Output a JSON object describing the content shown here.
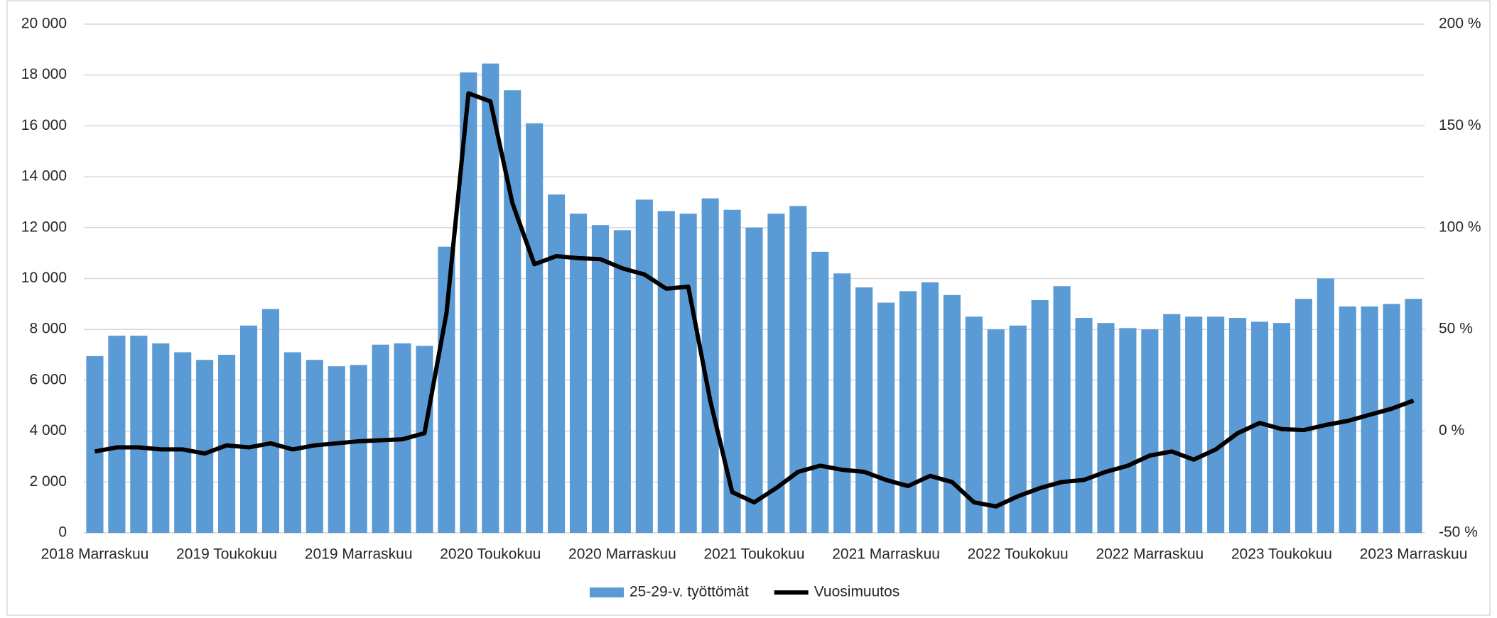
{
  "chart_data": {
    "type": "bar_line",
    "categories": [
      "2018 Marraskuu",
      null,
      null,
      null,
      null,
      null,
      "2019 Toukokuu",
      null,
      null,
      null,
      null,
      null,
      "2019 Marraskuu",
      null,
      null,
      null,
      null,
      null,
      "2020 Toukokuu",
      null,
      null,
      null,
      null,
      null,
      "2020 Marraskuu",
      null,
      null,
      null,
      null,
      null,
      "2021 Toukokuu",
      null,
      null,
      null,
      null,
      null,
      "2021 Marraskuu",
      null,
      null,
      null,
      null,
      null,
      "2022 Toukokuu",
      null,
      null,
      null,
      null,
      null,
      "2022 Marraskuu",
      null,
      null,
      null,
      null,
      null,
      "2023 Toukokuu",
      null,
      null,
      null,
      null,
      null,
      "2023 Marraskuu"
    ],
    "series": [
      {
        "name": "25-29-v. työttömät",
        "type": "bar",
        "color": "#5b9bd5",
        "values": [
          6950,
          7750,
          7750,
          7450,
          7100,
          6800,
          7000,
          8150,
          8800,
          7100,
          6800,
          6550,
          6600,
          7400,
          7450,
          7350,
          11250,
          18100,
          18450,
          17400,
          16100,
          13300,
          12550,
          12100,
          11900,
          13100,
          12650,
          12550,
          13150,
          12700,
          12000,
          12550,
          12850,
          11050,
          10200,
          9650,
          9050,
          9500,
          9850,
          9350,
          8500,
          8000,
          8150,
          9150,
          9700,
          8450,
          8250,
          8050,
          8000,
          8600,
          8500,
          8500,
          8450,
          8300,
          8250,
          9200,
          10000,
          8900,
          8900,
          9000,
          9200
        ]
      },
      {
        "name": "Vuosimuutos",
        "type": "line",
        "color": "#000000",
        "axis": "y2",
        "values": [
          -10,
          -8,
          -8,
          -9,
          -9,
          -11,
          -7,
          -8,
          -6,
          -9,
          -7,
          -6,
          -5,
          -4.5,
          -4,
          -1,
          58,
          166,
          162,
          112,
          82,
          86,
          85,
          84.5,
          80,
          77,
          70,
          71,
          15,
          -30,
          -35,
          -28,
          -20,
          -17,
          -19,
          -20,
          -24,
          -27,
          -22,
          -25,
          -35,
          -37,
          -32,
          -28,
          -25,
          -24,
          -20,
          -17,
          -12,
          -10,
          -14,
          -9,
          -1,
          4,
          1,
          0.5,
          3,
          5,
          8,
          11,
          15
        ]
      }
    ],
    "ylim": [
      0,
      20000
    ],
    "yticks": [
      0,
      {
        "value": 2000,
        "label": "2 000"
      },
      {
        "value": 4000,
        "label": "4 000"
      },
      {
        "value": 6000,
        "label": "6 000"
      },
      {
        "value": 8000,
        "label": "8 000"
      },
      {
        "value": 10000,
        "label": "10 000"
      },
      {
        "value": 12000,
        "label": "12 000"
      },
      {
        "value": 14000,
        "label": "14 000"
      },
      {
        "value": 16000,
        "label": "16 000"
      },
      {
        "value": 18000,
        "label": "18 000"
      },
      {
        "value": 20000,
        "label": "20 000"
      }
    ],
    "y2lim": [
      -50,
      200
    ],
    "y2ticks": [
      {
        "value": -50,
        "label": "-50 %"
      },
      {
        "value": 0,
        "label": "0 %"
      },
      {
        "value": 50,
        "label": "50 %"
      },
      {
        "value": 100,
        "label": "100 %"
      },
      {
        "value": 150,
        "label": "150 %"
      },
      {
        "value": 200,
        "label": "200 %"
      }
    ],
    "grid": true,
    "legend": "bottom"
  }
}
